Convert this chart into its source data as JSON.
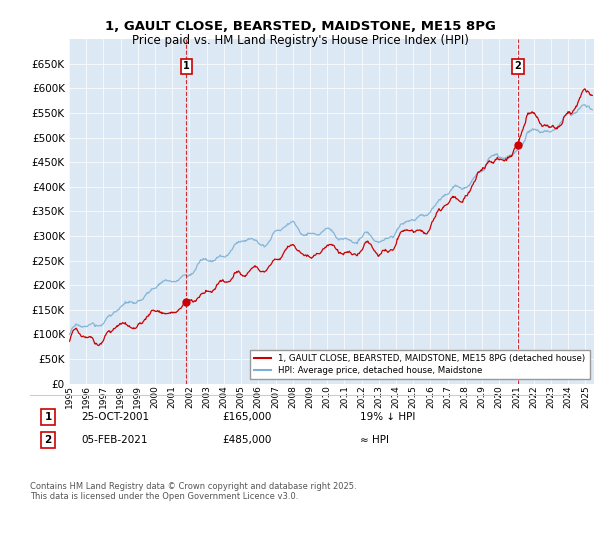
{
  "title": "1, GAULT CLOSE, BEARSTED, MAIDSTONE, ME15 8PG",
  "subtitle": "Price paid vs. HM Land Registry's House Price Index (HPI)",
  "ylim": [
    0,
    700000
  ],
  "yticks": [
    0,
    50000,
    100000,
    150000,
    200000,
    250000,
    300000,
    350000,
    400000,
    450000,
    500000,
    550000,
    600000,
    650000
  ],
  "xlim_start": 1995.0,
  "xlim_end": 2025.5,
  "marker1_x": 2001.82,
  "marker1_y": 165000,
  "marker2_x": 2021.09,
  "marker2_y": 485000,
  "line1_color": "#cc0000",
  "line2_color": "#7BAFD4",
  "background_color": "#ffffff",
  "plot_bg_color": "#dce9f5",
  "grid_color": "#ffffff",
  "legend1_label": "1, GAULT CLOSE, BEARSTED, MAIDSTONE, ME15 8PG (detached house)",
  "legend2_label": "HPI: Average price, detached house, Maidstone",
  "annotation1_num": "1",
  "annotation1_date": "25-OCT-2001",
  "annotation1_price": "£165,000",
  "annotation1_hpi": "19% ↓ HPI",
  "annotation2_num": "2",
  "annotation2_date": "05-FEB-2021",
  "annotation2_price": "£485,000",
  "annotation2_hpi": "≈ HPI",
  "footer": "Contains HM Land Registry data © Crown copyright and database right 2025.\nThis data is licensed under the Open Government Licence v3.0."
}
